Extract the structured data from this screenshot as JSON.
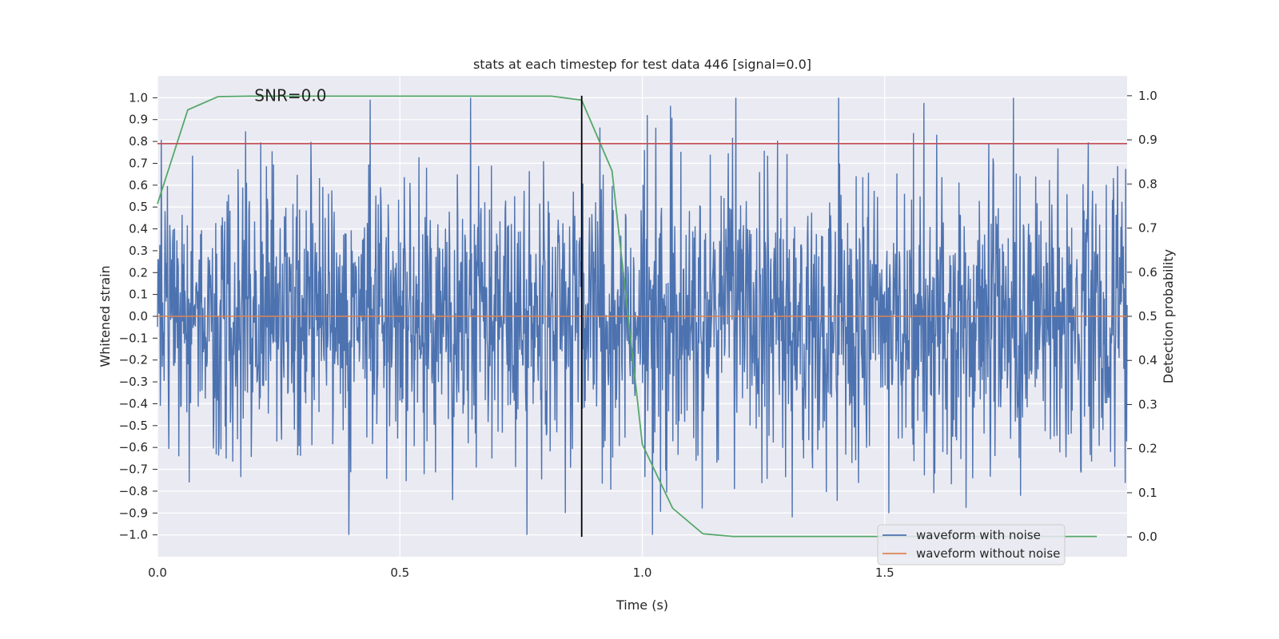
{
  "chart_data": {
    "type": "line",
    "title": "stats at each timestep for test data 446 [signal=0.0]",
    "xlabel": "Time (s)",
    "ylabel": "Whitened strain",
    "y2label": "Detection probability",
    "xlim": [
      0.0,
      2.0
    ],
    "ylim": [
      -1.1,
      1.1
    ],
    "y2lim": [
      -0.045,
      1.045
    ],
    "xticks": [
      0.0,
      0.5,
      1.0,
      1.5
    ],
    "xtick_labels": [
      "0.0",
      "0.5",
      "1.0",
      "1.5"
    ],
    "yticks": [
      1.0,
      0.9,
      0.8,
      0.7,
      0.6,
      0.5,
      0.4,
      0.3,
      0.2,
      0.1,
      0.0,
      -0.1,
      -0.2,
      -0.3,
      -0.4,
      -0.5,
      -0.6,
      -0.7,
      -0.8,
      -0.9,
      -1.0
    ],
    "ytick_labels": [
      "1.0",
      "0.9",
      "0.8",
      "0.7",
      "0.6",
      "0.5",
      "0.4",
      "0.3",
      "0.2",
      "0.1",
      "0.0",
      "−0.1",
      "−0.2",
      "−0.3",
      "−0.4",
      "−0.5",
      "−0.6",
      "−0.7",
      "−0.8",
      "−0.9",
      "−1.0"
    ],
    "y2ticks": [
      1.0,
      0.9,
      0.8,
      0.7,
      0.6,
      0.5,
      0.4,
      0.3,
      0.2,
      0.1,
      0.0
    ],
    "y2tick_labels": [
      "1.0",
      "0.9",
      "0.8",
      "0.7",
      "0.6",
      "0.5",
      "0.4",
      "0.3",
      "0.2",
      "0.1",
      "0.0"
    ],
    "annotation": "SNR=0.0",
    "annotation_at": {
      "x": 0.2,
      "y": 1.0
    },
    "threshold": {
      "y": 0.79,
      "color": "#c44e52"
    },
    "marker_time": 0.875,
    "series": [
      {
        "name": "waveform with noise",
        "color": "#4c72b0",
        "style": "noise",
        "samples": 2048,
        "seed": 446,
        "amplitude_min": -1.0,
        "amplitude_max": 1.0
      },
      {
        "name": "waveform without noise",
        "color": "#dd8452",
        "x": [
          0.0,
          2.0
        ],
        "y": [
          0.0,
          0.0
        ]
      },
      {
        "name": "detection probability",
        "color": "#55a868",
        "axis": "right",
        "x": [
          0.0,
          0.0625,
          0.125,
          0.1875,
          0.25,
          0.3125,
          0.375,
          0.4375,
          0.5,
          0.5625,
          0.625,
          0.6875,
          0.75,
          0.8125,
          0.875,
          0.9375,
          1.0,
          1.0625,
          1.125,
          1.1875,
          1.25,
          1.3125,
          1.375,
          1.4375,
          1.5,
          1.5625,
          1.625,
          1.6875,
          1.75,
          1.8125,
          1.875,
          1.9375
        ],
        "y": [
          0.755,
          0.968,
          0.998,
          0.999,
          0.999,
          0.999,
          0.999,
          0.999,
          0.999,
          0.999,
          0.999,
          0.999,
          0.999,
          0.999,
          0.99,
          0.83,
          0.21,
          0.065,
          0.007,
          0.001,
          0.001,
          0.001,
          0.001,
          0.001,
          0.001,
          0.001,
          0.001,
          0.001,
          0.001,
          0.001,
          0.001,
          0.001
        ]
      }
    ],
    "legend": {
      "placement": "lower-right",
      "entries": [
        {
          "label": "waveform with noise",
          "color": "#4c72b0"
        },
        {
          "label": "waveform without noise",
          "color": "#dd8452"
        }
      ]
    },
    "style": {
      "plot_bg": "#eaeaf2",
      "grid": "#ffffff",
      "text": "#262626",
      "marker_line": "#000000"
    }
  }
}
